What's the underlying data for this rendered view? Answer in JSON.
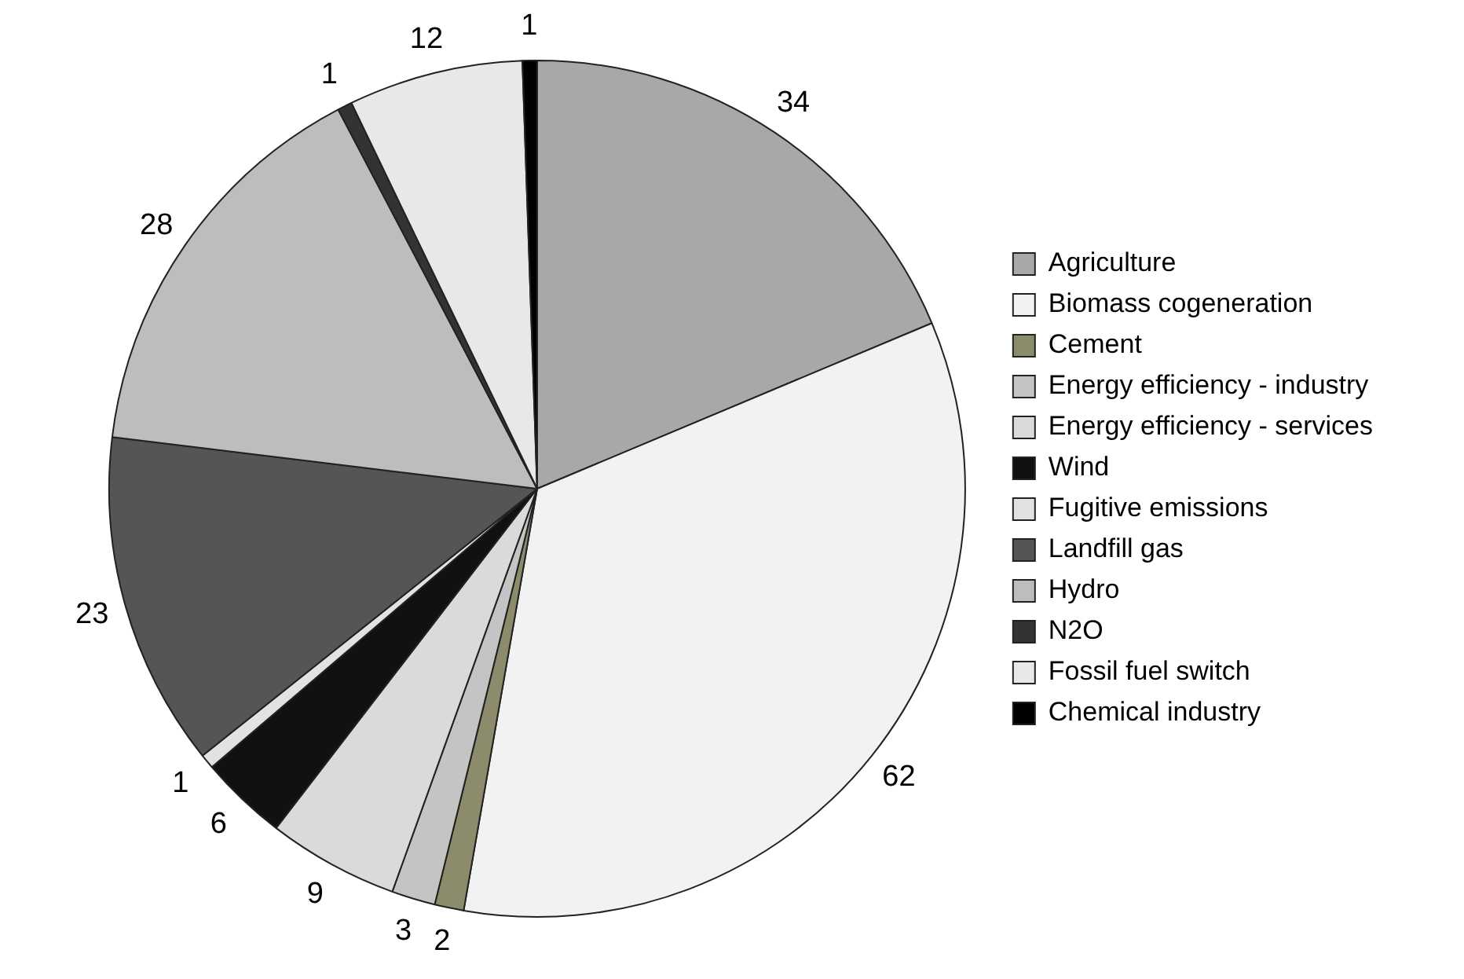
{
  "chart_data": {
    "type": "pie",
    "categories": [
      "Agriculture",
      "Biomass cogeneration",
      "Cement",
      "Energy efficiency - industry",
      "Energy efficiency - services",
      "Wind",
      "Fugitive emissions",
      "Landfill gas",
      "Hydro",
      "N2O",
      "Fossil fuel switch",
      "Chemical industry"
    ],
    "values": [
      34,
      62,
      2,
      3,
      9,
      6,
      1,
      23,
      28,
      1,
      12,
      1
    ],
    "colors": [
      "#a8a8a8",
      "#f2f2f2",
      "#8c8c6c",
      "#c4c4c4",
      "#dadada",
      "#111111",
      "#e2e2e2",
      "#555555",
      "#bdbdbd",
      "#333333",
      "#e8e8e8",
      "#000000"
    ],
    "data_labels": true,
    "legend": "right"
  }
}
